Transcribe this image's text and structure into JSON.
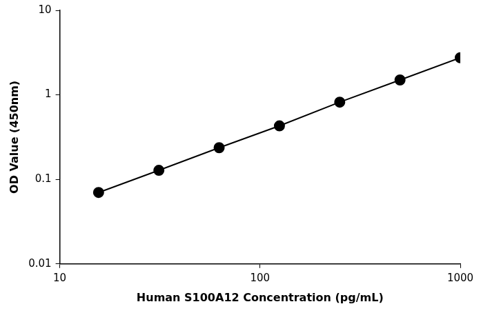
{
  "chart_data": {
    "type": "scatter",
    "x_label": "Human S100A12 Concentration (pg/mL)",
    "y_label": "OD Value (450nm)",
    "x": [
      15.625,
      31.25,
      62.5,
      125,
      250,
      500,
      1000
    ],
    "values": [
      0.07,
      0.128,
      0.237,
      0.43,
      0.82,
      1.5,
      2.75
    ],
    "color": "#000000",
    "marker": "circle",
    "line_style": "solid",
    "log": true,
    "xlim": [
      10,
      1000
    ],
    "ylim": [
      0.01,
      10
    ],
    "xticks": [
      10,
      100,
      1000
    ],
    "yticks": [
      0.01,
      0.1,
      1,
      10
    ],
    "grid": false
  }
}
